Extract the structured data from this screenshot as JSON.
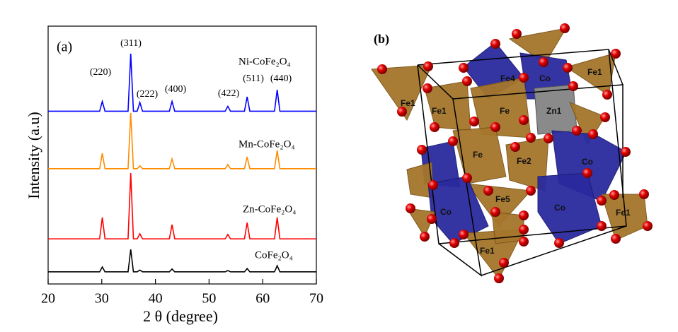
{
  "chart_data": {
    "type": "line",
    "panel_label": "(a)",
    "x_label": "2 θ  (degree)",
    "y_label": "Intensity (a.u)",
    "x": [
      20,
      29.6,
      30.1,
      30.6,
      34.9,
      35.4,
      35.9,
      36.6,
      37.1,
      37.6,
      42.6,
      43.1,
      43.6,
      53,
      53.5,
      54,
      56.6,
      57.1,
      57.6,
      62.2,
      62.7,
      63.2,
      70
    ],
    "xlim": [
      20,
      70
    ],
    "xticks": [
      20,
      30,
      40,
      50,
      60,
      70
    ],
    "ylim": [
      0,
      100
    ],
    "series": [
      {
        "name": "CoFe₂O₄",
        "color": "#000000",
        "values": [
          4.7,
          4.7,
          6.6,
          4.7,
          4.7,
          13.4,
          4.7,
          4.7,
          5.4,
          4.7,
          4.7,
          5.8,
          4.7,
          4.7,
          5.2,
          4.7,
          4.7,
          6,
          4.7,
          4.7,
          7.1,
          4.7,
          4.7
        ]
      },
      {
        "name": "Zn-CoFe₂O₄",
        "color": "#ff0000",
        "values": [
          17.5,
          17.5,
          25.8,
          17.5,
          17.5,
          43,
          17.5,
          17.5,
          19.5,
          17.5,
          17.5,
          23,
          17.5,
          17.5,
          19.2,
          17.5,
          17.5,
          23.8,
          17.5,
          17.5,
          25.8,
          17.5,
          17.5
        ]
      },
      {
        "name": "Mn-CoFe₂O₄",
        "color": "#ff8c00",
        "values": [
          44.7,
          44.7,
          50.7,
          44.7,
          44.7,
          66.3,
          44.7,
          44.7,
          45.8,
          44.7,
          44.7,
          48.5,
          44.7,
          44.7,
          46.3,
          44.7,
          44.7,
          49.3,
          44.7,
          44.7,
          51.8,
          44.7,
          44.7
        ]
      },
      {
        "name": "Ni-CoFe₂O₄",
        "color": "#0000ff",
        "values": [
          67,
          67,
          70.8,
          67,
          67,
          89.3,
          67,
          67,
          70.4,
          67,
          67,
          70.8,
          67,
          67,
          68.9,
          67,
          67,
          72.6,
          67,
          67,
          75.3,
          67,
          67
        ]
      }
    ],
    "annotations": [
      "(311)",
      "(220)",
      "(222)",
      "(400)",
      "(422)",
      "(511)",
      "(440)"
    ]
  },
  "structure": {
    "panel_label": "(b)",
    "atoms": [
      "Fe1",
      "Fe1",
      "Fe",
      "Zn1",
      "Co",
      "Fe4",
      "Fe1",
      "Fe",
      "Fe2",
      "Co",
      "Fe5",
      "Co",
      "Co",
      "Fe1",
      "Fe1"
    ]
  }
}
